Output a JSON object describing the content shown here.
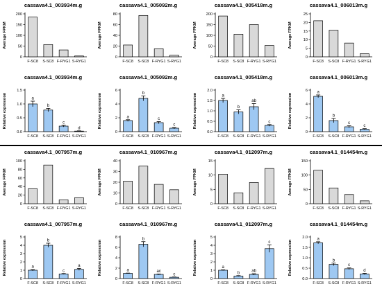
{
  "colors": {
    "fpkm_bar": "#d9d9d9",
    "qpcr_bar": "#9ec8f2",
    "stroke": "#000000",
    "divider": "#000000"
  },
  "chart_data": [
    {
      "type": "bar",
      "title": "cassava4.1_003934m.g",
      "ylabel": "Average FPKM",
      "categories": [
        "F-SC8",
        "S-SC8",
        "F-RYG1",
        "S-RYG1"
      ],
      "values": [
        185,
        57,
        32,
        4
      ],
      "yticks": [
        0,
        50,
        100,
        150,
        200
      ],
      "ylim": [
        0,
        200
      ]
    },
    {
      "type": "bar",
      "title": "cassava4.1_005092m.g",
      "ylabel": "Average FPKM",
      "categories": [
        "F-SC8",
        "S-SC8",
        "F-RYG1",
        "S-RYG1"
      ],
      "values": [
        22,
        77,
        15,
        3
      ],
      "yticks": [
        0,
        20,
        40,
        60,
        80
      ],
      "ylim": [
        0,
        80
      ]
    },
    {
      "type": "bar",
      "title": "cassava4.1_005418m.g",
      "ylabel": "Average FPKM",
      "categories": [
        "F-SC8",
        "S-SC8",
        "F-RYG1",
        "S-RYG1"
      ],
      "values": [
        190,
        105,
        150,
        53
      ],
      "yticks": [
        0,
        50,
        100,
        150,
        200
      ],
      "ylim": [
        0,
        200
      ]
    },
    {
      "type": "bar",
      "title": "cassava4.1_006013m.g",
      "ylabel": "Average FPKM",
      "categories": [
        "F-SC8",
        "S-SC8",
        "F-RYG1",
        "S-RYG1"
      ],
      "values": [
        21,
        15.5,
        8,
        1.8
      ],
      "yticks": [
        0,
        5,
        10,
        15,
        20,
        25
      ],
      "ylim": [
        0,
        25
      ]
    },
    {
      "type": "bar",
      "title": "cassava4.1_003934m.g",
      "ylabel": "Relative expression",
      "categories": [
        "F-SC8",
        "S-SC8",
        "F-RYG1",
        "S-RYG1"
      ],
      "values": [
        1.0,
        0.78,
        0.2,
        0.02
      ],
      "errors": [
        0.1,
        0.06,
        0.03,
        0.01
      ],
      "letters": [
        "a",
        "b",
        "c",
        "d"
      ],
      "yticks": [
        0.0,
        0.5,
        1.0,
        1.5
      ],
      "ylim": [
        0,
        1.5
      ]
    },
    {
      "type": "bar",
      "title": "cassava4.1_005092m.g",
      "ylabel": "Relative expression",
      "categories": [
        "F-SC8",
        "S-SC8",
        "F-RYG1",
        "S-RYG1"
      ],
      "values": [
        1.6,
        4.8,
        1.3,
        0.5
      ],
      "errors": [
        0.12,
        0.35,
        0.15,
        0.1
      ],
      "letters": [
        "a",
        "b",
        "c",
        "c"
      ],
      "yticks": [
        0,
        2,
        4,
        6
      ],
      "ylim": [
        0,
        6
      ]
    },
    {
      "type": "bar",
      "title": "cassava4.1_005418m.g",
      "ylabel": "Relative expression",
      "categories": [
        "F-SC8",
        "S-SC8",
        "F-RYG1",
        "S-RYG1"
      ],
      "values": [
        1.5,
        0.95,
        1.2,
        0.3
      ],
      "errors": [
        0.1,
        0.1,
        0.15,
        0.04
      ],
      "letters": [
        "a",
        "b",
        "ab",
        "c"
      ],
      "yticks": [
        0.0,
        0.5,
        1.0,
        1.5,
        2.0
      ],
      "ylim": [
        0,
        2.0
      ]
    },
    {
      "type": "bar",
      "title": "cassava4.1_006013m.g",
      "ylabel": "Relative expression",
      "categories": [
        "F-SC8",
        "S-SC8",
        "F-RYG1",
        "S-RYG1"
      ],
      "values": [
        5.1,
        1.6,
        0.7,
        0.35
      ],
      "errors": [
        0.2,
        0.3,
        0.15,
        0.08
      ],
      "letters": [
        "a",
        "b",
        "c",
        "c"
      ],
      "yticks": [
        0,
        2,
        4,
        6
      ],
      "ylim": [
        0,
        6
      ]
    },
    {
      "type": "bar",
      "title": "cassava4.1_007957m.g",
      "ylabel": "Average FPKM",
      "categories": [
        "F-SC8",
        "S-SC8",
        "F-RYG1",
        "S-RYG1"
      ],
      "values": [
        35,
        90,
        9,
        14
      ],
      "yticks": [
        0,
        20,
        40,
        60,
        80,
        100
      ],
      "ylim": [
        0,
        100
      ]
    },
    {
      "type": "bar",
      "title": "cassava4.1_010967m.g",
      "ylabel": "Average FPKM",
      "categories": [
        "F-SC8",
        "S-SC8",
        "F-RYG1",
        "S-RYG1"
      ],
      "values": [
        21,
        35,
        18,
        13
      ],
      "yticks": [
        0,
        10,
        20,
        30,
        40
      ],
      "ylim": [
        0,
        40
      ]
    },
    {
      "type": "bar",
      "title": "cassava4.1_012097m.g",
      "ylabel": "Average FPKM",
      "categories": [
        "F-SC8",
        "S-SC8",
        "F-RYG1",
        "S-RYG1"
      ],
      "values": [
        10.3,
        3.8,
        7.4,
        12.3
      ],
      "yticks": [
        0,
        5,
        10,
        15
      ],
      "ylim": [
        0,
        15
      ]
    },
    {
      "type": "bar",
      "title": "cassava4.1_014454m.g",
      "ylabel": "Average FPKM",
      "categories": [
        "F-SC8",
        "S-SC8",
        "F-RYG1",
        "S-RYG1"
      ],
      "values": [
        117,
        55,
        32,
        10
      ],
      "yticks": [
        0,
        50,
        100,
        150
      ],
      "ylim": [
        0,
        150
      ]
    },
    {
      "type": "bar",
      "title": "cassava4.1_007957m.g",
      "ylabel": "Relative expression",
      "categories": [
        "F-SC8",
        "S-SC8",
        "F-RYG1",
        "S-RYG1"
      ],
      "values": [
        1.0,
        4.0,
        0.55,
        1.1
      ],
      "errors": [
        0.08,
        0.25,
        0.05,
        0.12
      ],
      "letters": [
        "a",
        "b",
        "c",
        "a"
      ],
      "yticks": [
        0,
        1,
        2,
        3,
        4,
        5
      ],
      "ylim": [
        0,
        5
      ]
    },
    {
      "type": "bar",
      "title": "cassava4.1_010967m.g",
      "ylabel": "Relative expression",
      "categories": [
        "F-SC8",
        "S-SC8",
        "F-RYG1",
        "S-RYG1"
      ],
      "values": [
        1.0,
        6.6,
        0.8,
        0.25
      ],
      "errors": [
        0.05,
        0.5,
        0.08,
        0.05
      ],
      "letters": [
        "a",
        "b",
        "ac",
        "c"
      ],
      "yticks": [
        0,
        2,
        4,
        6,
        8
      ],
      "ylim": [
        0,
        8
      ]
    },
    {
      "type": "bar",
      "title": "cassava4.1_012097m.g",
      "ylabel": "Relative expression",
      "categories": [
        "F-SC8",
        "S-SC8",
        "F-RYG1",
        "S-RYG1"
      ],
      "values": [
        1.0,
        0.3,
        0.5,
        3.6
      ],
      "errors": [
        0.05,
        0.05,
        0.08,
        0.45
      ],
      "letters": [
        "a",
        "b",
        "ab",
        "c"
      ],
      "yticks": [
        0,
        1,
        2,
        3,
        4,
        5
      ],
      "ylim": [
        0,
        5
      ]
    },
    {
      "type": "bar",
      "title": "cassava4.1_014454m.g",
      "ylabel": "Relative expression",
      "categories": [
        "F-SC8",
        "S-SC8",
        "F-RYG1",
        "S-RYG1"
      ],
      "values": [
        1.72,
        0.68,
        0.47,
        0.22
      ],
      "errors": [
        0.05,
        0.06,
        0.04,
        0.03
      ],
      "letters": [
        "a",
        "b",
        "c",
        "d"
      ],
      "yticks": [
        0.0,
        0.5,
        1.0,
        1.5,
        2.0
      ],
      "ylim": [
        0,
        2.0
      ]
    }
  ]
}
